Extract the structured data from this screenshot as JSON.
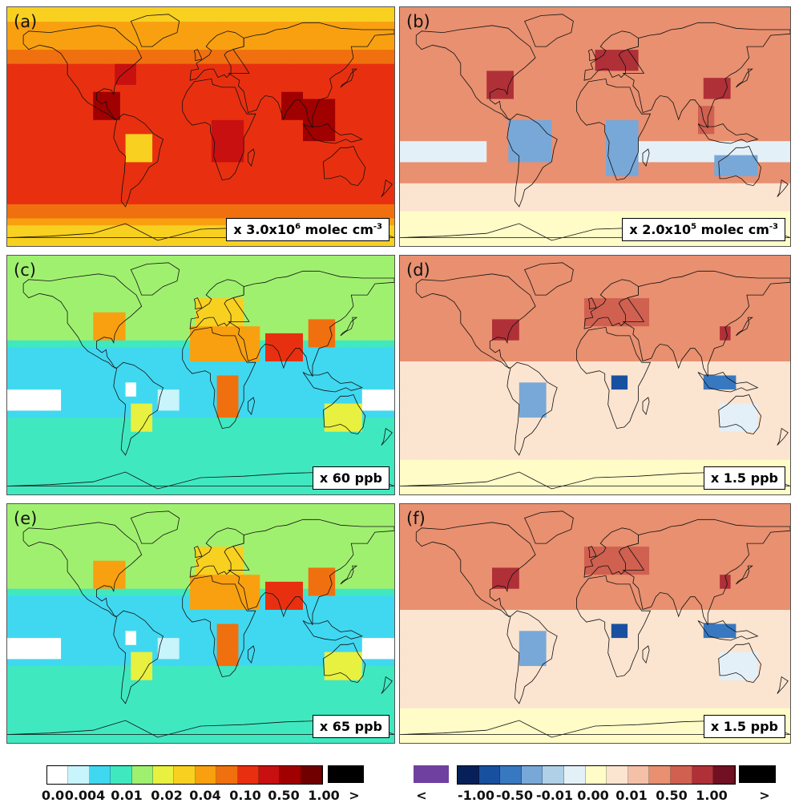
{
  "panels": [
    {
      "label": "(a)",
      "unit_prefix": "x 3.0x10",
      "unit_exp": "6",
      "unit_suffix": " molec cm",
      "unit_exp2": "-3",
      "palette": "seq"
    },
    {
      "label": "(b)",
      "unit_prefix": "x 2.0x10",
      "unit_exp": "5",
      "unit_suffix": " molec cm",
      "unit_exp2": "-3",
      "palette": "div"
    },
    {
      "label": "(c)",
      "unit_prefix": "x 60 ppb",
      "unit_exp": "",
      "unit_suffix": "",
      "unit_exp2": "",
      "palette": "seq"
    },
    {
      "label": "(d)",
      "unit_prefix": "x 1.5 ppb",
      "unit_exp": "",
      "unit_suffix": "",
      "unit_exp2": "",
      "palette": "div"
    },
    {
      "label": "(e)",
      "unit_prefix": "x 65 ppb",
      "unit_exp": "",
      "unit_suffix": "",
      "unit_exp2": "",
      "palette": "seq"
    },
    {
      "label": "(f)",
      "unit_prefix": "x 1.5 ppb",
      "unit_exp": "",
      "unit_suffix": "",
      "unit_exp2": "",
      "palette": "div"
    }
  ],
  "colorbar_seq": {
    "colors": [
      "#ffffff",
      "#c8f4fb",
      "#40d8f0",
      "#40e8c0",
      "#a0f070",
      "#e8f040",
      "#f8d020",
      "#f8a010",
      "#f07010",
      "#e83010",
      "#c81010",
      "#a00000",
      "#700000"
    ],
    "over_color": "#000000",
    "ticks": [
      "0.0",
      "0.004",
      "0.01",
      "0.02",
      "0.04",
      "0.10",
      "0.50",
      "1.00",
      ">"
    ]
  },
  "colorbar_div": {
    "under_color": "#7040a0",
    "colors": [
      "#08205a",
      "#1850a0",
      "#3878c0",
      "#78a8d8",
      "#b0d0e8",
      "#e4f0f8",
      "#fffcc8",
      "#fbe4d0",
      "#f4c0a8",
      "#e89070",
      "#d06050",
      "#b03038",
      "#701020"
    ],
    "over_color": "#000000",
    "ticks": [
      "<",
      "-1.00",
      "-0.50",
      "-0.01",
      "0.00",
      "0.01",
      "0.50",
      "1.00",
      ">"
    ]
  }
}
